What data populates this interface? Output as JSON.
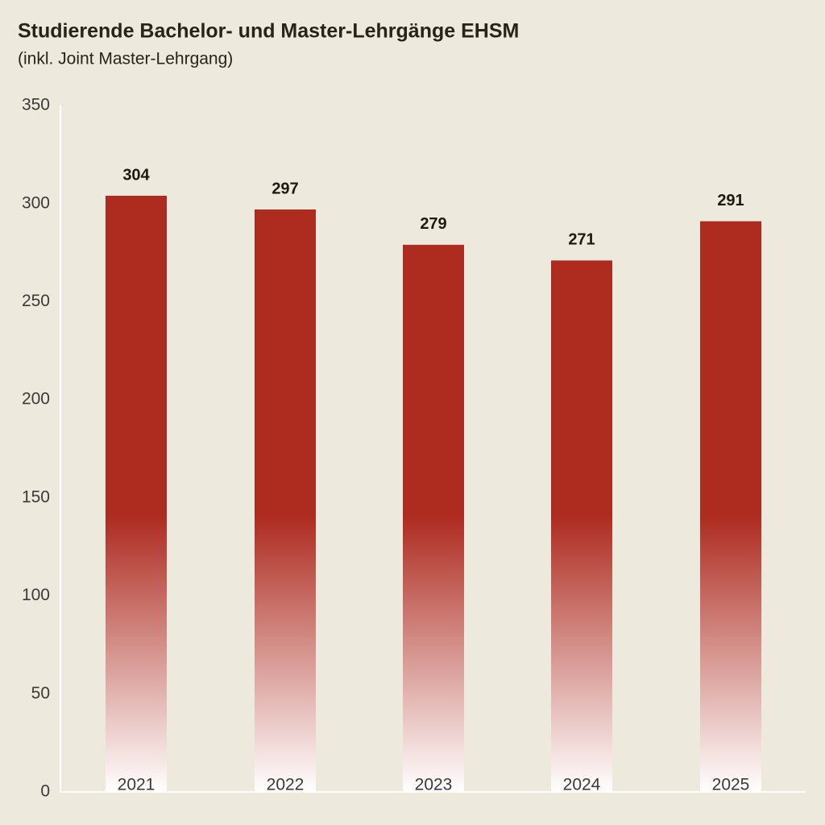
{
  "chart_data": {
    "type": "bar",
    "title": "Studierende Bachelor- und Master-Lehrgänge EHSM",
    "subtitle": "(inkl. Joint Master-Lehrgang)",
    "categories": [
      "2021",
      "2022",
      "2023",
      "2024",
      "2025"
    ],
    "values": [
      304,
      297,
      279,
      271,
      291
    ],
    "color": "#ae2b20",
    "ylim": [
      0,
      350
    ],
    "yticks": [
      0,
      50,
      100,
      150,
      200,
      250,
      300,
      350
    ],
    "grid": false
  }
}
